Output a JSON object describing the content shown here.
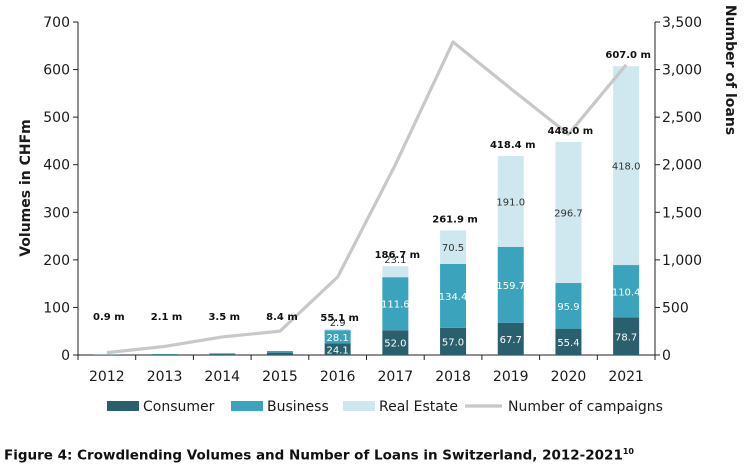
{
  "caption": {
    "text": "Figure 4: Crowdlending Volumes and Number of Loans in Switzerland, 2012-2021",
    "footnote": "10"
  },
  "chart_data": {
    "type": "bar",
    "stacked": true,
    "categories": [
      "2012",
      "2013",
      "2014",
      "2015",
      "2016",
      "2017",
      "2018",
      "2019",
      "2020",
      "2021"
    ],
    "ylabel": "Volumes in CHFm",
    "y2label": "Number of loans",
    "ylim": [
      0,
      700
    ],
    "y2lim": [
      0,
      3500
    ],
    "yticks": [
      "0",
      "100",
      "200",
      "300",
      "400",
      "500",
      "600",
      "700"
    ],
    "y2ticks": [
      "0",
      "500",
      "1,000",
      "1,500",
      "2,000",
      "2,500",
      "3,000",
      "3,500"
    ],
    "grid": false,
    "legend_position": "bottom",
    "series": [
      {
        "name": "Consumer",
        "color": "#2a5f6e",
        "label_color": "#ffffff",
        "values": [
          0.5,
          1.2,
          2.0,
          5.0,
          24.1,
          52.0,
          57.0,
          67.7,
          55.4,
          78.7
        ],
        "labels": [
          "",
          "",
          "",
          "",
          "24.1",
          "52.0",
          "57.0",
          "67.7",
          "55.4",
          "78.7"
        ]
      },
      {
        "name": "Business",
        "color": "#3ba3bb",
        "label_color": "#ffffff",
        "values": [
          0.4,
          0.9,
          1.5,
          3.4,
          28.1,
          111.6,
          134.4,
          159.7,
          95.9,
          110.4
        ],
        "labels": [
          "",
          "",
          "",
          "",
          "28.1",
          "111.6",
          "134.4",
          "159.7",
          "95.9",
          "110.4"
        ]
      },
      {
        "name": "Real Estate",
        "color": "#cfe8ef",
        "label_color": "#333333",
        "values": [
          0,
          0,
          0,
          0,
          2.9,
          23.1,
          70.5,
          191.0,
          296.7,
          418.0
        ],
        "labels": [
          "",
          "",
          "",
          "",
          "2.9",
          "23.1",
          "70.5",
          "191.0",
          "296.7",
          "418.0"
        ]
      }
    ],
    "totals": [
      "0.9 m",
      "2.1 m",
      "3.5 m",
      "8.4 m",
      "55.1 m",
      "186.7 m",
      "261.9 m",
      "418.4 m",
      "448.0 m",
      "607.0 m"
    ],
    "line": {
      "name": "Number of campaigns",
      "color": "#c8c8c8",
      "axis": "y2",
      "values": [
        25,
        90,
        190,
        250,
        820,
        2000,
        3290,
        2800,
        2320,
        3050
      ]
    }
  }
}
